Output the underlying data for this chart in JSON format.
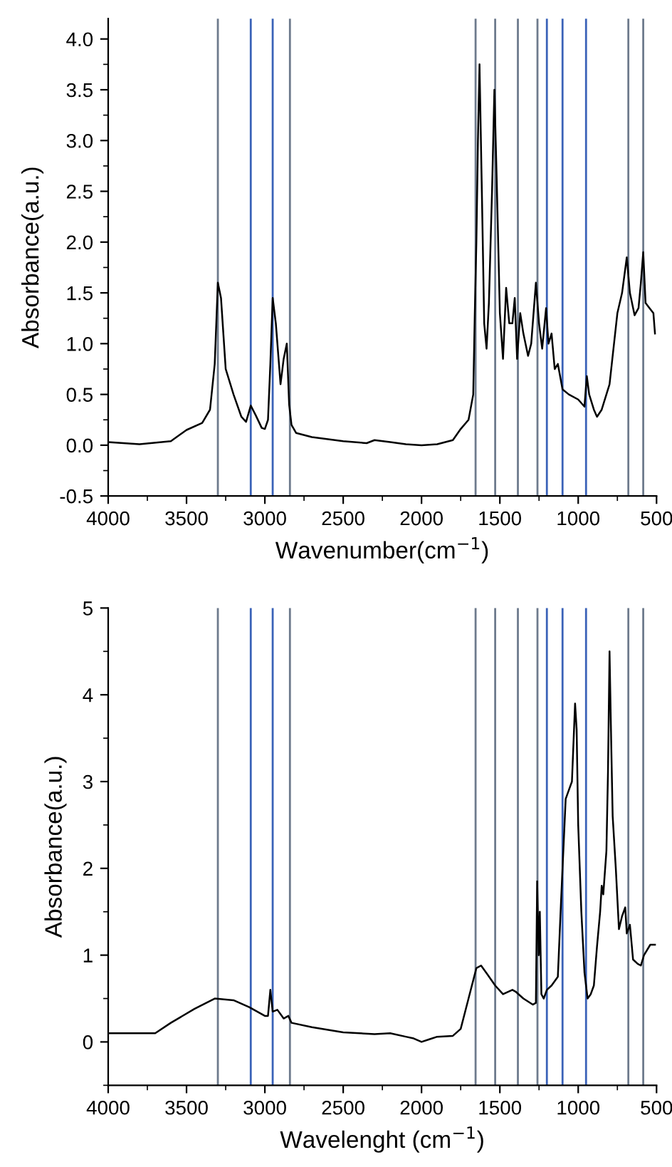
{
  "chart_data": [
    {
      "type": "line",
      "xlabel": "Wavenumber(cm$^{−1}$)",
      "ylabel": "Absorbance(a.u.)",
      "xlim": [
        4000,
        500
      ],
      "xticks": [
        4000,
        3500,
        3000,
        2500,
        2000,
        1500,
        1000,
        500
      ],
      "ylim": [
        -0.5,
        4.2
      ],
      "yticks": [
        {
          "value": -0.5,
          "label": "-0.5"
        },
        {
          "value": 0,
          "label": "0.0"
        },
        {
          "value": 0.5,
          "label": "0.5"
        },
        {
          "value": 1,
          "label": "1.0"
        },
        {
          "value": 1.5,
          "label": "1.5"
        },
        {
          "value": 2,
          "label": "2.0"
        },
        {
          "value": 2.5,
          "label": "2.5"
        },
        {
          "value": 3,
          "label": "3.0"
        },
        {
          "value": 3.5,
          "label": "3.5"
        },
        {
          "value": 4,
          "label": "4.0"
        }
      ],
      "grid": false,
      "legend": false,
      "line_style": "solid",
      "series": [
        {
          "color": "#000000",
          "x": [
            4000,
            3800,
            3600,
            3500,
            3400,
            3350,
            3320,
            3300,
            3280,
            3250,
            3200,
            3150,
            3120,
            3090,
            3060,
            3020,
            3000,
            2980,
            2965,
            2950,
            2930,
            2900,
            2880,
            2860,
            2845,
            2830,
            2800,
            2700,
            2500,
            2350,
            2300,
            2200,
            2100,
            2000,
            1900,
            1800,
            1750,
            1700,
            1670,
            1660,
            1650,
            1640,
            1630,
            1615,
            1600,
            1585,
            1570,
            1550,
            1535,
            1520,
            1500,
            1480,
            1460,
            1440,
            1420,
            1405,
            1390,
            1370,
            1350,
            1320,
            1300,
            1270,
            1250,
            1230,
            1205,
            1190,
            1170,
            1150,
            1130,
            1100,
            1060,
            1000,
            960,
            945,
            930,
            900,
            880,
            850,
            800,
            750,
            720,
            690,
            670,
            640,
            615,
            600,
            585,
            570,
            545,
            520,
            510
          ],
          "values": [
            0.03,
            0.01,
            0.04,
            0.15,
            0.22,
            0.35,
            0.8,
            1.6,
            1.45,
            0.75,
            0.5,
            0.28,
            0.23,
            0.39,
            0.3,
            0.17,
            0.16,
            0.25,
            0.8,
            1.45,
            1.2,
            0.6,
            0.85,
            1.0,
            0.4,
            0.2,
            0.12,
            0.08,
            0.04,
            0.02,
            0.05,
            0.03,
            0.01,
            0.0,
            0.01,
            0.05,
            0.16,
            0.25,
            0.5,
            1.3,
            2.0,
            3.0,
            3.75,
            2.5,
            1.2,
            0.95,
            1.4,
            2.5,
            3.5,
            2.6,
            1.3,
            0.85,
            1.55,
            1.2,
            1.2,
            1.45,
            0.85,
            1.3,
            1.1,
            0.88,
            1.0,
            1.6,
            1.2,
            0.95,
            1.35,
            1.0,
            1.1,
            0.75,
            0.8,
            0.55,
            0.5,
            0.45,
            0.38,
            0.68,
            0.5,
            0.35,
            0.28,
            0.35,
            0.6,
            1.3,
            1.5,
            1.85,
            1.5,
            1.28,
            1.35,
            1.6,
            1.9,
            1.4,
            1.35,
            1.3,
            1.1
          ]
        }
      ],
      "ref_lines": [
        {
          "axis": "x",
          "value": 3300,
          "color": "#6d7a8c"
        },
        {
          "axis": "x",
          "value": 3090,
          "color": "#3a62b8"
        },
        {
          "axis": "x",
          "value": 2950,
          "color": "#3a62b8"
        },
        {
          "axis": "x",
          "value": 2840,
          "color": "#6d7a8c"
        },
        {
          "axis": "x",
          "value": 1655,
          "color": "#6d7a8c"
        },
        {
          "axis": "x",
          "value": 1530,
          "color": "#6d7a8c"
        },
        {
          "axis": "x",
          "value": 1385,
          "color": "#6d7a8c"
        },
        {
          "axis": "x",
          "value": 1260,
          "color": "#6d7a8c"
        },
        {
          "axis": "x",
          "value": 1200,
          "color": "#3a62b8"
        },
        {
          "axis": "x",
          "value": 1100,
          "color": "#3a62b8"
        },
        {
          "axis": "x",
          "value": 950,
          "color": "#3a62b8"
        },
        {
          "axis": "x",
          "value": 680,
          "color": "#6d7a8c"
        },
        {
          "axis": "x",
          "value": 585,
          "color": "#6d7a8c"
        }
      ]
    },
    {
      "type": "line",
      "xlabel": "Wavelenght (cm$^{−1}$)",
      "ylabel": "Absorbance(a.u.)",
      "xlim": [
        4000,
        500
      ],
      "xticks": [
        4000,
        3500,
        3000,
        2500,
        2000,
        1500,
        1000,
        500
      ],
      "ylim": [
        -0.5,
        5
      ],
      "yticks": [
        0,
        1,
        2,
        3,
        4,
        5
      ],
      "grid": false,
      "legend": false,
      "line_style": "solid",
      "series": [
        {
          "color": "#000000",
          "x": [
            4000,
            3700,
            3600,
            3450,
            3320,
            3200,
            3100,
            3000,
            2980,
            2965,
            2950,
            2920,
            2880,
            2850,
            2830,
            2700,
            2500,
            2300,
            2200,
            2100,
            2050,
            2000,
            1950,
            1900,
            1800,
            1750,
            1700,
            1650,
            1620,
            1580,
            1530,
            1480,
            1420,
            1400,
            1350,
            1290,
            1270,
            1262,
            1252,
            1245,
            1235,
            1220,
            1200,
            1170,
            1130,
            1110,
            1100,
            1080,
            1060,
            1040,
            1020,
            1010,
            1000,
            980,
            960,
            940,
            920,
            900,
            880,
            860,
            850,
            840,
            820,
            810,
            800,
            790,
            780,
            760,
            740,
            720,
            700,
            690,
            670,
            650,
            620,
            600,
            580,
            540,
            510
          ],
          "values": [
            0.1,
            0.1,
            0.22,
            0.38,
            0.5,
            0.48,
            0.4,
            0.3,
            0.3,
            0.6,
            0.35,
            0.37,
            0.27,
            0.3,
            0.22,
            0.17,
            0.11,
            0.09,
            0.1,
            0.06,
            0.04,
            0.0,
            0.03,
            0.06,
            0.07,
            0.15,
            0.5,
            0.85,
            0.88,
            0.78,
            0.65,
            0.55,
            0.6,
            0.58,
            0.5,
            0.43,
            0.45,
            1.85,
            1.0,
            1.5,
            0.55,
            0.5,
            0.6,
            0.65,
            0.75,
            1.6,
            2.0,
            2.8,
            2.9,
            3.0,
            3.9,
            3.6,
            2.5,
            1.5,
            0.8,
            0.5,
            0.55,
            0.65,
            1.1,
            1.5,
            1.8,
            1.7,
            2.2,
            3.1,
            4.5,
            3.5,
            2.6,
            2.0,
            1.3,
            1.45,
            1.55,
            1.25,
            1.35,
            0.95,
            0.9,
            0.88,
            1.0,
            1.12,
            1.12
          ]
        }
      ],
      "ref_lines": [
        {
          "axis": "x",
          "value": 3300,
          "color": "#6d7a8c"
        },
        {
          "axis": "x",
          "value": 3090,
          "color": "#3a62b8"
        },
        {
          "axis": "x",
          "value": 2950,
          "color": "#3a62b8"
        },
        {
          "axis": "x",
          "value": 2840,
          "color": "#6d7a8c"
        },
        {
          "axis": "x",
          "value": 1655,
          "color": "#6d7a8c"
        },
        {
          "axis": "x",
          "value": 1530,
          "color": "#6d7a8c"
        },
        {
          "axis": "x",
          "value": 1385,
          "color": "#6d7a8c"
        },
        {
          "axis": "x",
          "value": 1260,
          "color": "#6d7a8c"
        },
        {
          "axis": "x",
          "value": 1200,
          "color": "#3a62b8"
        },
        {
          "axis": "x",
          "value": 1100,
          "color": "#3a62b8"
        },
        {
          "axis": "x",
          "value": 950,
          "color": "#3a62b8"
        },
        {
          "axis": "x",
          "value": 680,
          "color": "#6d7a8c"
        },
        {
          "axis": "x",
          "value": 585,
          "color": "#6d7a8c"
        }
      ]
    }
  ]
}
